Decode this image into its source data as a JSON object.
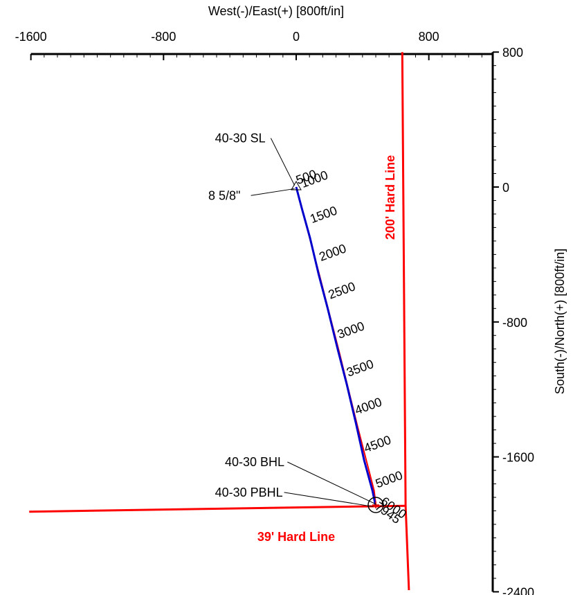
{
  "chart_data": {
    "type": "line",
    "xlabel": "West(-)/East(+) [800ft/in]",
    "ylabel": "South(-)/North(+) [800ft/in]",
    "xlim": [
      -1600,
      1200
    ],
    "ylim": [
      -2400,
      800
    ],
    "x_ticks": [
      -1600,
      -800,
      0,
      800
    ],
    "y_ticks": [
      800,
      0,
      -800,
      -1600,
      -2400
    ],
    "x_tick_labels": [
      "-1600",
      "-800",
      "0",
      "800"
    ],
    "y_tick_labels": [
      "800",
      "0",
      "-800",
      "-1600",
      "-2400"
    ],
    "grid": false,
    "series": [
      {
        "color": "#0000cc",
        "points": [
          {
            "x": 0,
            "y": 0
          },
          {
            "x": 35,
            "y": -130
          },
          {
            "x": 83,
            "y": -300
          },
          {
            "x": 136,
            "y": -520
          },
          {
            "x": 190,
            "y": -720
          },
          {
            "x": 250,
            "y": -960
          },
          {
            "x": 305,
            "y": -1170
          },
          {
            "x": 360,
            "y": -1400
          },
          {
            "x": 410,
            "y": -1620
          },
          {
            "x": 460,
            "y": -1800
          },
          {
            "x": 478,
            "y": -1885
          }
        ]
      },
      {
        "color": "#ff0000",
        "points": [
          {
            "x": 0,
            "y": 0
          },
          {
            "x": 140,
            "y": -520
          },
          {
            "x": 260,
            "y": -980
          },
          {
            "x": 370,
            "y": -1420
          },
          {
            "x": 470,
            "y": -1800
          },
          {
            "x": 480,
            "y": -1880
          }
        ]
      }
    ],
    "hard_lines": [
      {
        "label": "200' Hard Line",
        "color": "#ff0000",
        "points": [
          {
            "x": 640,
            "y": 800
          },
          {
            "x": 660,
            "y": -1890
          },
          {
            "x": 680,
            "y": -2390
          }
        ]
      },
      {
        "label": "39' Hard Line",
        "color": "#ff0000",
        "points": [
          {
            "x": -1610,
            "y": -1925
          },
          {
            "x": 660,
            "y": -1890
          }
        ]
      }
    ],
    "md_labels": [
      {
        "text": "500",
        "x": 10,
        "y": 15,
        "angle": -20
      },
      {
        "text": "1000",
        "x": 40,
        "y": -5,
        "angle": -20
      },
      {
        "text": "1500",
        "x": 95,
        "y": -215,
        "angle": -20
      },
      {
        "text": "2000",
        "x": 150,
        "y": -440,
        "angle": -20
      },
      {
        "text": "2500",
        "x": 205,
        "y": -665,
        "angle": -20
      },
      {
        "text": "3000",
        "x": 260,
        "y": -900,
        "angle": -20
      },
      {
        "text": "3500",
        "x": 315,
        "y": -1125,
        "angle": -20
      },
      {
        "text": "4000",
        "x": 365,
        "y": -1350,
        "angle": -20
      },
      {
        "text": "4500",
        "x": 420,
        "y": -1575,
        "angle": -20
      },
      {
        "text": "5000",
        "x": 490,
        "y": -1785,
        "angle": -20
      },
      {
        "text": "6000",
        "x": 505,
        "y": -1875,
        "angle": 35
      },
      {
        "text": "7945",
        "x": 470,
        "y": -1905,
        "angle": 35
      }
    ],
    "annotations": [
      {
        "text": "40-30 SL",
        "text_x": -490,
        "text_y": 265,
        "target_x": -10,
        "target_y": 10
      },
      {
        "text": "8 5/8\"",
        "text_x": -530,
        "text_y": -75,
        "target_x": -10,
        "target_y": -10
      },
      {
        "text": "40-30 BHL",
        "text_x": -430,
        "text_y": -1655,
        "target_x": 480,
        "target_y": -1880
      },
      {
        "text": "40-30 PBHL",
        "text_x": -490,
        "text_y": -1835,
        "target_x": 465,
        "target_y": -1895
      }
    ],
    "markers": [
      {
        "name": "surface-location",
        "x": 0,
        "y": 0
      },
      {
        "name": "bottom-hole-location",
        "x": 480,
        "y": -1885
      }
    ]
  }
}
